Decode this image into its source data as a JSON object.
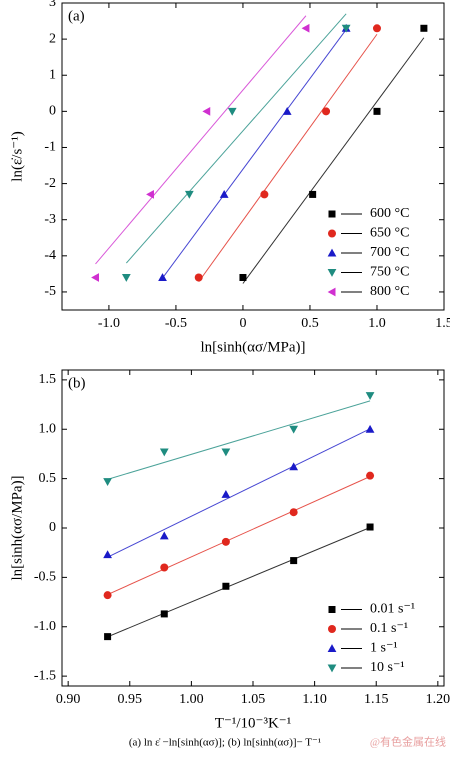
{
  "chart_data": [
    {
      "type": "scatter",
      "panel_label": "(a)",
      "x_label": "ln[sinh(ασ/MPa)]",
      "y_label": "ln(ε̇/s⁻¹)",
      "xlim": [
        -1.35,
        1.5
      ],
      "ylim": [
        -5.5,
        3
      ],
      "xticks": [
        {
          "value": -1.0,
          "label": "-1.0"
        },
        -0.5,
        0,
        0.5,
        {
          "value": 1.0,
          "label": "1.0"
        },
        1.5
      ],
      "yticks": [
        -5,
        -4,
        -3,
        -2,
        -1,
        0,
        1,
        2,
        3
      ],
      "legend": "lower right",
      "fit_lines": true,
      "series": [
        {
          "name": "600 °C",
          "color": "#000000",
          "marker": "square",
          "x": [
            0.0,
            0.52,
            1.0,
            1.35
          ],
          "values": [
            -4.6,
            -2.3,
            0,
            2.3
          ]
        },
        {
          "name": "650 °C",
          "color": "#e0281e",
          "marker": "circle",
          "x": [
            -0.33,
            0.16,
            0.62,
            1.0
          ],
          "values": [
            -4.6,
            -2.3,
            0,
            2.3
          ]
        },
        {
          "name": "700 °C",
          "color": "#1a1ac8",
          "marker": "triangle-up",
          "x": [
            -0.6,
            -0.14,
            0.33,
            0.77
          ],
          "values": [
            -4.6,
            -2.3,
            0,
            2.3
          ]
        },
        {
          "name": "750 °C",
          "color": "#1f8c80",
          "marker": "triangle-down",
          "x": [
            -0.87,
            -0.4,
            -0.08,
            0.77
          ],
          "values": [
            -4.6,
            -2.3,
            0,
            2.3
          ]
        },
        {
          "name": "800 °C",
          "color": "#d030d0",
          "marker": "triangle-left",
          "x": [
            -1.1,
            -0.69,
            -0.27,
            0.47
          ],
          "values": [
            -4.6,
            -2.3,
            0,
            2.3
          ]
        }
      ]
    },
    {
      "type": "scatter",
      "panel_label": "(b)",
      "x_label": "T⁻¹/10⁻³K⁻¹",
      "y_label": "ln[sinh(ασ/MPa)]",
      "xlim": [
        0.895,
        1.205
      ],
      "ylim": [
        -1.6,
        1.6
      ],
      "xticks": [
        {
          "value": 0.9,
          "label": "0.90"
        },
        {
          "value": 0.95,
          "label": "0.95"
        },
        {
          "value": 1.0,
          "label": "1.00"
        },
        {
          "value": 1.05,
          "label": "1.05"
        },
        {
          "value": 1.1,
          "label": "1.10"
        },
        {
          "value": 1.15,
          "label": "1.15"
        },
        {
          "value": 1.2,
          "label": "1.20"
        }
      ],
      "yticks": [
        -1.5,
        {
          "value": -1.0,
          "label": "-1.0"
        },
        -0.5,
        0,
        0.5,
        {
          "value": 1.0,
          "label": "1.0"
        },
        1.5
      ],
      "legend": "lower right",
      "fit_lines": true,
      "x": [
        0.932,
        0.978,
        1.028,
        1.083,
        1.145
      ],
      "series": [
        {
          "name": "0.01 s⁻¹",
          "color": "#000000",
          "marker": "square",
          "values": [
            -1.1,
            -0.87,
            -0.59,
            -0.33,
            0.01
          ]
        },
        {
          "name": "0.1 s⁻¹",
          "color": "#e0281e",
          "marker": "circle",
          "values": [
            -0.68,
            -0.4,
            -0.14,
            0.16,
            0.53
          ]
        },
        {
          "name": "1 s⁻¹",
          "color": "#1a1ac8",
          "marker": "triangle-up",
          "values": [
            -0.27,
            -0.08,
            0.34,
            0.62,
            1.0
          ]
        },
        {
          "name": "10 s⁻¹",
          "color": "#1f8c80",
          "marker": "triangle-down",
          "values": [
            0.47,
            0.77,
            0.77,
            1.0,
            1.34
          ]
        }
      ]
    }
  ],
  "caption": "(a) ln ε̇ −ln[sinh(ασ)]; (b) ln[sinh(ασ)]− T⁻¹",
  "watermark": "@有色金属在线"
}
